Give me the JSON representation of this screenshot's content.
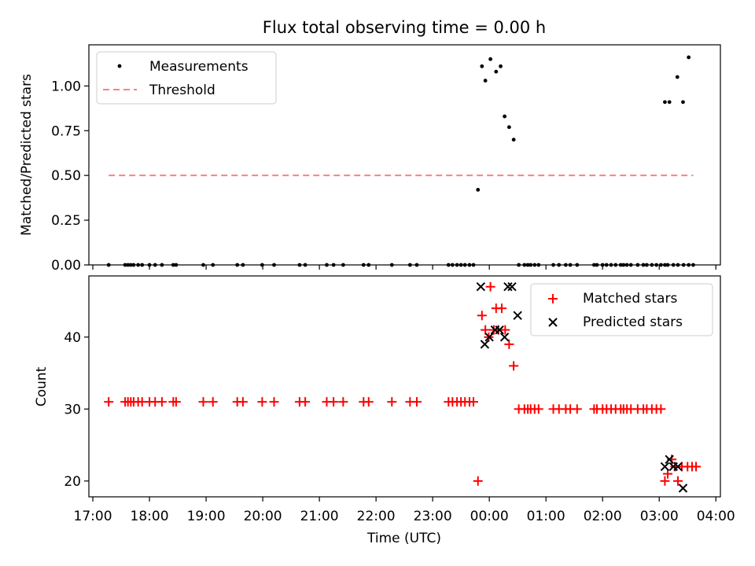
{
  "chart_data": [
    {
      "type": "scatter",
      "title": "Flux total observing time = 0.00 h",
      "xlabel": "",
      "ylabel": "Matched/Predicted stars",
      "xlim": [
        16.93,
        28.08
      ],
      "ylim": [
        0,
        1.23
      ],
      "yticks": [
        0,
        0.25,
        0.5,
        0.75,
        1.0
      ],
      "ytick_labels": [
        "0.00",
        "0.25",
        "0.50",
        "0.75",
        "1.00"
      ],
      "legend_position": "top-left",
      "series": [
        {
          "name": "Measurements",
          "marker": "dot",
          "color": "#000000",
          "x": [
            17.28,
            17.57,
            17.62,
            17.67,
            17.72,
            17.8,
            17.87,
            18.0,
            18.1,
            18.22,
            18.42,
            18.47,
            18.95,
            19.12,
            19.55,
            19.65,
            19.99,
            20.2,
            20.65,
            20.75,
            21.13,
            21.25,
            21.42,
            21.78,
            21.87,
            22.28,
            22.6,
            22.72,
            23.28,
            23.35,
            23.43,
            23.5,
            23.57,
            23.65,
            23.72,
            23.8,
            23.87,
            23.93,
            24.02,
            24.12,
            24.2,
            24.27,
            24.35,
            24.43,
            24.52,
            24.62,
            24.68,
            24.73,
            24.8,
            24.87,
            25.13,
            25.23,
            25.35,
            25.43,
            25.55,
            25.85,
            25.9,
            26.0,
            26.07,
            26.15,
            26.23,
            26.32,
            26.37,
            26.43,
            26.5,
            26.62,
            26.72,
            26.78,
            26.87,
            26.95,
            27.03,
            27.1,
            27.15,
            27.25,
            27.33,
            27.43,
            27.52,
            27.6
          ],
          "y": [
            0,
            0,
            0,
            0,
            0,
            0,
            0,
            0,
            0,
            0,
            0,
            0,
            0,
            0,
            0,
            0,
            0,
            0,
            0,
            0,
            0,
            0,
            0,
            0,
            0,
            0,
            0,
            0,
            0,
            0,
            0,
            0,
            0,
            0,
            0,
            0.42,
            1.11,
            1.03,
            1.15,
            1.08,
            1.11,
            0.83,
            0.77,
            0.7,
            0,
            0,
            0,
            0,
            0,
            0,
            0,
            0,
            0,
            0,
            0,
            0,
            0,
            0,
            0,
            0,
            0,
            0,
            0,
            0,
            0,
            0,
            0,
            0,
            0,
            0,
            0,
            0,
            0,
            0,
            0,
            0,
            0,
            0
          ]
        },
        {
          "name": "Threshold",
          "marker": "dashed-line",
          "color": "#ff7f7f",
          "x": [
            17.28,
            27.6
          ],
          "y": [
            0.5,
            0.5
          ]
        }
      ],
      "extra_points": {
        "x": [
          27.1,
          27.18,
          27.32,
          27.42
        ],
        "y": [
          0.91,
          0.91,
          1.05,
          0.91
        ]
      },
      "extra_points_2": {
        "x": [
          27.52
        ],
        "y": [
          1.16
        ]
      }
    },
    {
      "type": "scatter",
      "title": "",
      "xlabel": "Time (UTC)",
      "ylabel": "Count",
      "xlim": [
        16.93,
        28.08
      ],
      "ylim": [
        17.8,
        48.5
      ],
      "yticks": [
        20,
        30,
        40
      ],
      "ytick_labels": [
        "20",
        "30",
        "40"
      ],
      "xticks": [
        17,
        18,
        19,
        20,
        21,
        22,
        23,
        24,
        25,
        26,
        27,
        28
      ],
      "xtick_labels": [
        "17:00",
        "18:00",
        "19:00",
        "20:00",
        "21:00",
        "22:00",
        "23:00",
        "00:00",
        "01:00",
        "02:00",
        "03:00",
        "04:00"
      ],
      "legend_position": "top-right",
      "series": [
        {
          "name": "Matched stars",
          "marker": "plus",
          "color": "#ff0000",
          "x": [
            17.28,
            17.57,
            17.62,
            17.67,
            17.72,
            17.8,
            17.87,
            18.0,
            18.1,
            18.22,
            18.42,
            18.47,
            18.95,
            19.12,
            19.55,
            19.65,
            19.99,
            20.2,
            20.65,
            20.75,
            21.13,
            21.25,
            21.42,
            21.78,
            21.87,
            22.28,
            22.6,
            22.72,
            23.28,
            23.35,
            23.43,
            23.5,
            23.57,
            23.65,
            23.72,
            23.8,
            23.87,
            23.93,
            23.99,
            24.02,
            24.08,
            24.12,
            24.16,
            24.22,
            24.28,
            24.35,
            24.43,
            24.52,
            24.62,
            24.68,
            24.73,
            24.8,
            24.87,
            25.13,
            25.23,
            25.35,
            25.43,
            25.55,
            25.85,
            25.9,
            26.0,
            26.07,
            26.15,
            26.23,
            26.32,
            26.37,
            26.43,
            26.5,
            26.62,
            26.72,
            26.78,
            26.87,
            26.95,
            27.03,
            27.1,
            27.15,
            27.22,
            27.28,
            27.33,
            27.4,
            27.5,
            27.58,
            27.65
          ],
          "y": [
            31,
            31,
            31,
            31,
            31,
            31,
            31,
            31,
            31,
            31,
            31,
            31,
            31,
            31,
            31,
            31,
            31,
            31,
            31,
            31,
            31,
            31,
            31,
            31,
            31,
            31,
            31,
            31,
            31,
            31,
            31,
            31,
            31,
            31,
            31,
            20,
            43,
            41,
            40,
            47,
            41,
            44,
            41,
            44,
            41,
            39,
            36,
            30,
            30,
            30,
            30,
            30,
            30,
            30,
            30,
            30,
            30,
            30,
            30,
            30,
            30,
            30,
            30,
            30,
            30,
            30,
            30,
            30,
            30,
            30,
            30,
            30,
            30,
            30,
            20,
            21,
            23,
            22,
            20,
            22,
            22,
            22,
            22
          ]
        },
        {
          "name": "Predicted stars",
          "marker": "x",
          "color": "#000000",
          "x": [
            23.85,
            23.92,
            24.0,
            24.1,
            24.18,
            24.27,
            24.33,
            24.4,
            24.5,
            27.1,
            27.18,
            27.25,
            27.33,
            27.42
          ],
          "y": [
            47,
            39,
            40,
            41,
            41,
            40,
            47,
            47,
            43,
            22,
            23,
            22,
            22,
            19
          ]
        }
      ]
    }
  ]
}
